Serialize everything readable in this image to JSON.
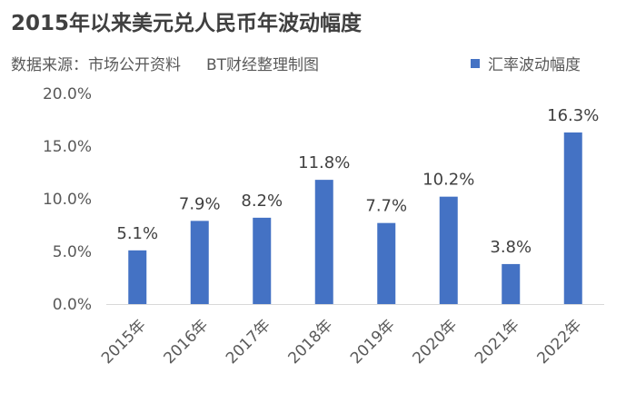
{
  "header": {
    "title": "2015年以来美元兑人民币年波动幅度",
    "source": "数据来源：市场公开资料",
    "credit": "BT财经整理制图"
  },
  "colors": {
    "bar": "#4472c4",
    "axis": "#d9d9d9",
    "text": "#595959"
  },
  "chart_data": {
    "type": "bar",
    "title": "2015年以来美元兑人民币年波动幅度",
    "categories": [
      "2015年",
      "2016年",
      "2017年",
      "2018年",
      "2019年",
      "2020年",
      "2021年",
      "2022年"
    ],
    "series": [
      {
        "name": "汇率波动幅度",
        "values": [
          5.1,
          7.9,
          8.2,
          11.8,
          7.7,
          10.2,
          3.8,
          16.3
        ],
        "data_labels": [
          "5.1%",
          "7.9%",
          "8.2%",
          "11.8%",
          "7.7%",
          "10.2%",
          "3.8%",
          "16.3%"
        ]
      }
    ],
    "ylim": [
      0,
      20
    ],
    "y_ticks": [
      0,
      5,
      10,
      15,
      20
    ],
    "y_tick_labels": [
      "0.0%",
      "5.0%",
      "10.0%",
      "15.0%",
      "20.0%"
    ],
    "xlabel": "",
    "ylabel": "",
    "grid": false,
    "legend_position": "top-right"
  }
}
